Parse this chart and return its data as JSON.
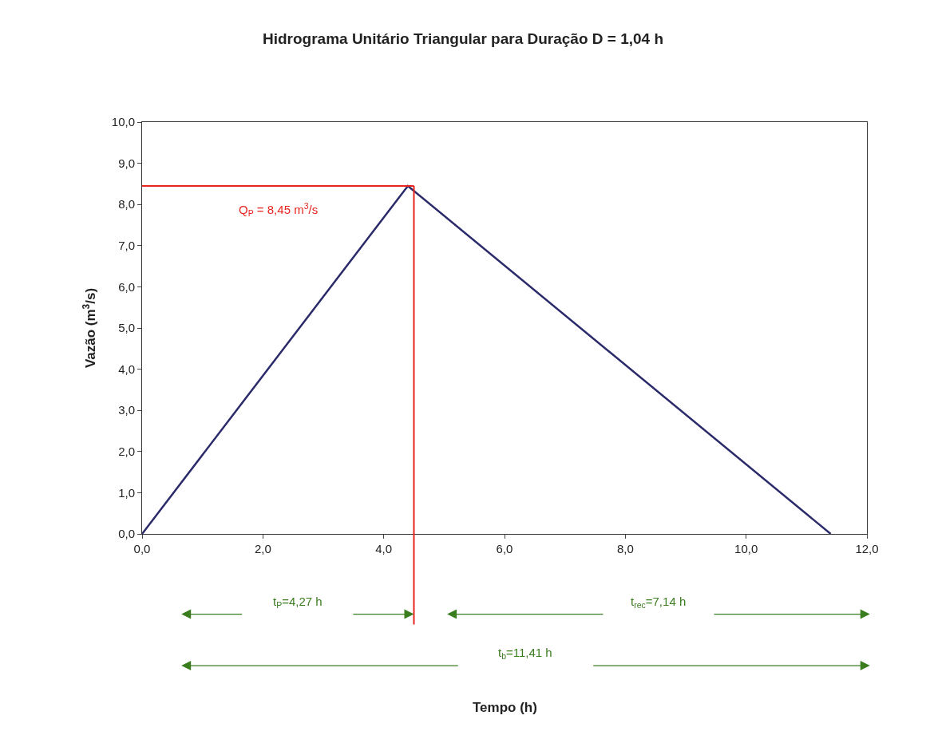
{
  "chart_data": {
    "type": "line",
    "title": "Hidrograma Unitário Triangular para Duração D = 1,04 h",
    "ylabel": "Vazão (m$^{3}$/s)",
    "x": [
      0,
      4.4,
      11.4
    ],
    "series": [
      {
        "color": "#2b2b6b",
        "values": [
          0,
          8.45,
          0
        ]
      }
    ],
    "xlim": [
      0,
      12
    ],
    "xticks": [
      {
        "value": 0,
        "label": "0,0"
      },
      {
        "value": 2,
        "label": "2,0"
      },
      {
        "value": 4,
        "label": "4,0"
      },
      {
        "value": 6,
        "label": "6,0"
      },
      {
        "value": 8,
        "label": "8,0"
      },
      {
        "value": 10,
        "label": "10,0"
      },
      {
        "value": 12,
        "label": "12,0"
      }
    ],
    "ylim": [
      0,
      10
    ],
    "yticks": [
      {
        "value": 0,
        "label": "0,0"
      },
      {
        "value": 1,
        "label": "1,0"
      },
      {
        "value": 2,
        "label": "2,0"
      },
      {
        "value": 3,
        "label": "3,0"
      },
      {
        "value": 4,
        "label": "4,0"
      },
      {
        "value": 5,
        "label": "5,0"
      },
      {
        "value": 6,
        "label": "6,0"
      },
      {
        "value": 7,
        "label": "7,0"
      },
      {
        "value": 8,
        "label": "8,0"
      },
      {
        "value": 9,
        "label": "9,0"
      },
      {
        "value": 10,
        "label": "10,0"
      }
    ],
    "ref_lines": [
      {
        "axis": "y",
        "value": 8.45,
        "label": "Q$_{P}$ = 8,45 m$^{3}$/s",
        "color": "#e8251f"
      },
      {
        "axis": "x",
        "value": 4.5,
        "color": "#e8251f"
      }
    ],
    "annotations": [
      "t$_{P}$=4,27 h",
      "t$_{rec}$=7,14 h",
      "t$_{b}$=11,41 h",
      "Tempo (h)"
    ],
    "marker": "none",
    "line_style": "solid"
  }
}
